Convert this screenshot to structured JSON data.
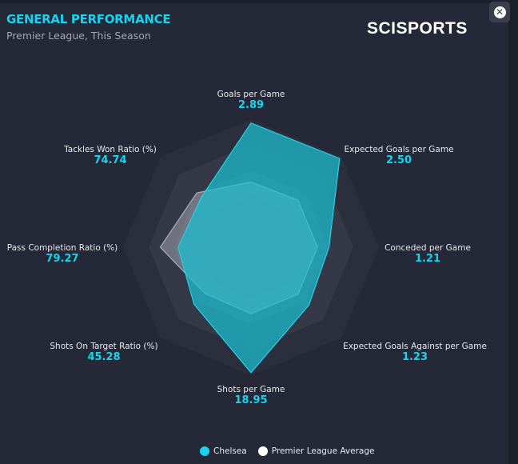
{
  "header": {
    "title": "GENERAL PERFORMANCE",
    "subtitle": "Premier League, This Season",
    "logo": "SCISPORTS",
    "close_icon": "close-icon"
  },
  "colors": {
    "accent": "#19d3ee",
    "chelsea": "#1fb8cc",
    "average": "#d8d8de",
    "background": "#252937"
  },
  "chart_data": {
    "type": "radar",
    "rings": 5,
    "axes": [
      {
        "name": "Goals per Game",
        "value": "2.89"
      },
      {
        "name": "Expected Goals per Game",
        "value": "2.50"
      },
      {
        "name": "Conceded per Game",
        "value": "1.21"
      },
      {
        "name": "Expected Goals Against per Game",
        "value": "1.23"
      },
      {
        "name": "Shots per Game",
        "value": "18.95"
      },
      {
        "name": "Shots On Target Ratio (%)",
        "value": "45.28"
      },
      {
        "name": "Pass Completion Ratio (%)",
        "value": "79.27"
      },
      {
        "name": "Tackles Won Ratio (%)",
        "value": "74.74"
      }
    ],
    "series": [
      {
        "name": "Chelsea",
        "normalized": [
          0.97,
          0.98,
          0.61,
          0.64,
          0.98,
          0.63,
          0.57,
          0.55
        ]
      },
      {
        "name": "Premier League Average",
        "normalized": [
          0.51,
          0.52,
          0.52,
          0.52,
          0.52,
          0.51,
          0.71,
          0.6
        ]
      }
    ],
    "legend": "bottom"
  }
}
